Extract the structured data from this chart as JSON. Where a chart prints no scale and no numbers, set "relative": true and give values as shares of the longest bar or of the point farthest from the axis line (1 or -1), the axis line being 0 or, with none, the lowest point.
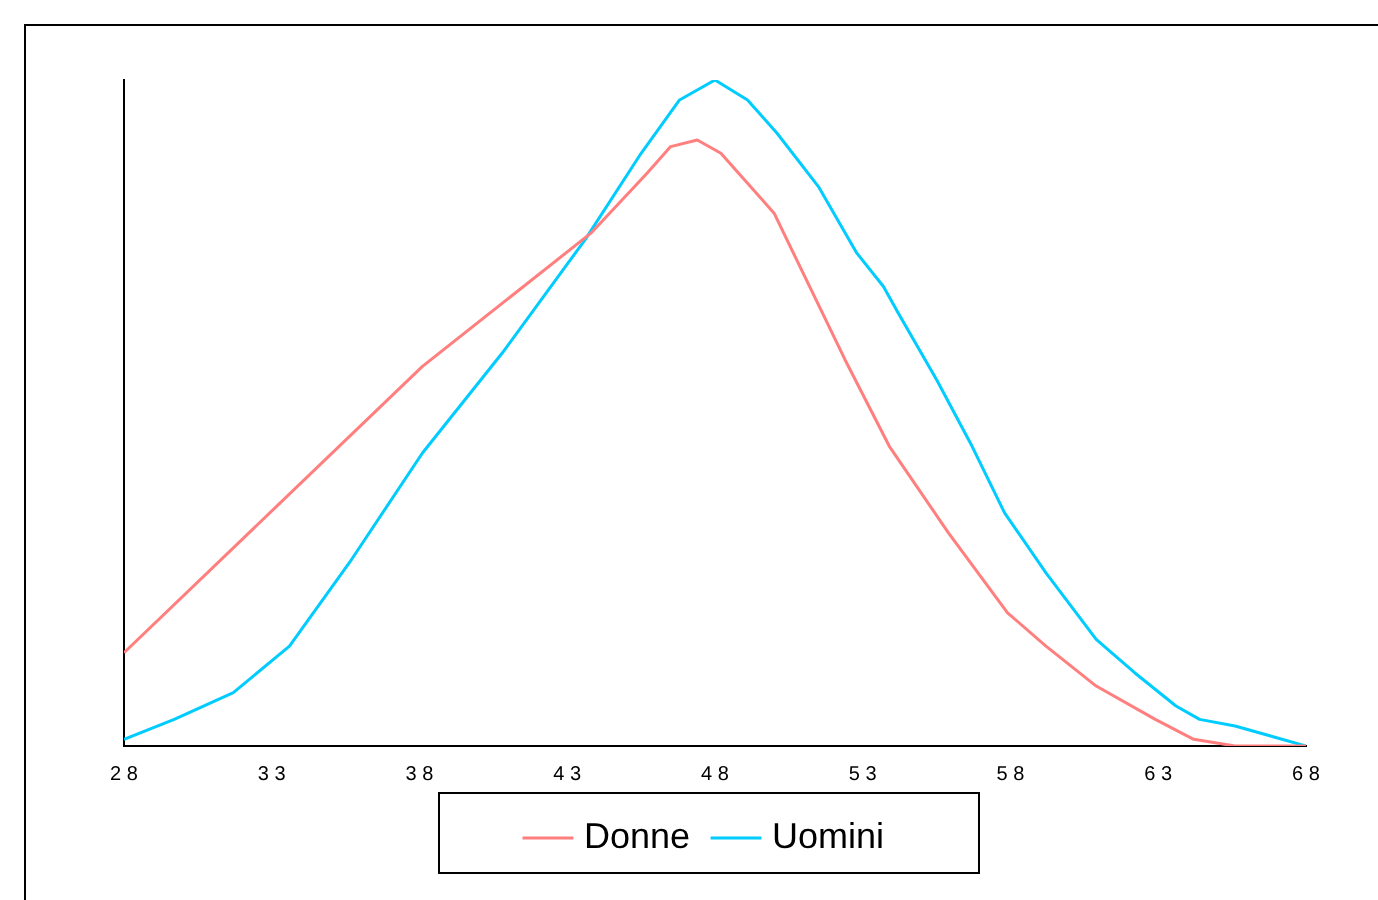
{
  "chart_data": {
    "type": "line",
    "relative": true,
    "xlim": [
      28,
      68
    ],
    "xticks": [
      28,
      33,
      38,
      43,
      48,
      53,
      58,
      63,
      68
    ],
    "grid": false,
    "legend": "bottom",
    "marker": "none",
    "line_style": "solid",
    "series": [
      {
        "name": "Donne",
        "color": "#ff7f7f",
        "x": [
          28,
          38.1,
          43.8,
          45.7,
          46.5,
          47.4,
          48.2,
          48.8,
          50,
          51.2,
          52.4,
          53.9,
          55.9,
          57.9,
          59.2,
          60.9,
          62.9,
          64.2,
          65.6,
          68
        ],
        "values": [
          0.14,
          0.57,
          0.77,
          0.86,
          0.9,
          0.91,
          0.89,
          0.86,
          0.8,
          0.69,
          0.58,
          0.45,
          0.32,
          0.2,
          0.15,
          0.09,
          0.04,
          0.01,
          0,
          0
        ]
      },
      {
        "name": "Uomini",
        "color": "#00ccff",
        "x": [
          28,
          29.7,
          31.7,
          33.6,
          35.7,
          38.1,
          40.8,
          43.6,
          45.5,
          46.8,
          48,
          49.1,
          50.1,
          51.5,
          52.8,
          53.7,
          54.2,
          55.5,
          56.7,
          57.8,
          59.2,
          60.9,
          62.2,
          63.6,
          64.4,
          65.6,
          68
        ],
        "values": [
          0.01,
          0.04,
          0.08,
          0.15,
          0.28,
          0.44,
          0.59,
          0.76,
          0.89,
          0.97,
          1,
          0.97,
          0.92,
          0.84,
          0.74,
          0.69,
          0.65,
          0.55,
          0.45,
          0.35,
          0.26,
          0.16,
          0.11,
          0.06,
          0.04,
          0.03,
          0
        ]
      }
    ]
  }
}
